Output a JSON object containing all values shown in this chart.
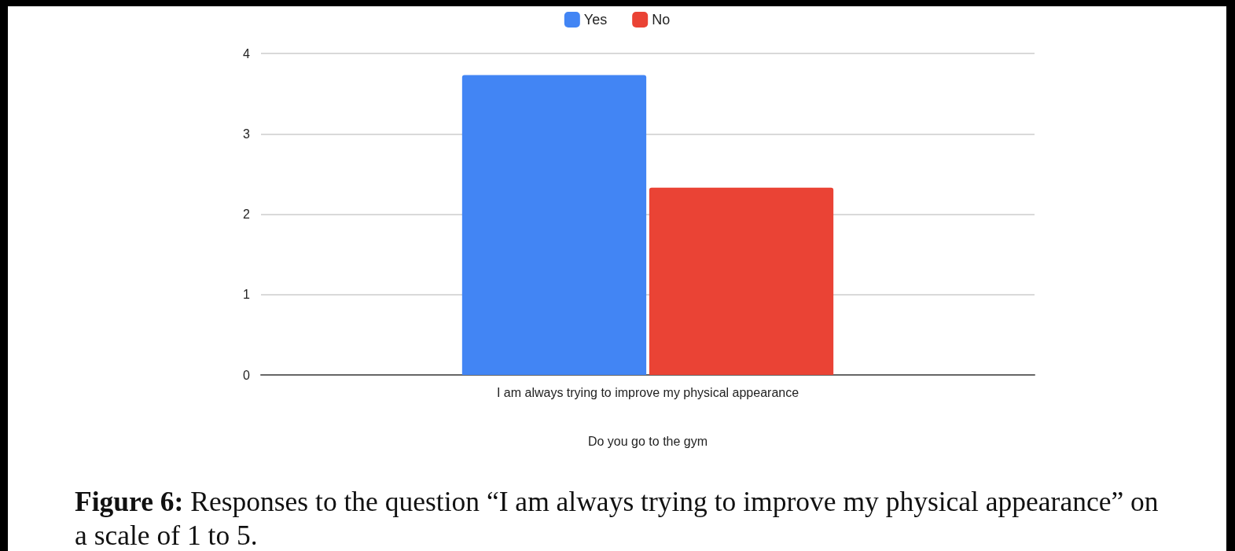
{
  "chart_data": {
    "type": "bar",
    "categories": [
      "I am always trying to improve my physical appearance"
    ],
    "series": [
      {
        "name": "Yes",
        "color": "#4285f4",
        "values": [
          3.73
        ]
      },
      {
        "name": "No",
        "color": "#ea4335",
        "values": [
          2.33
        ]
      }
    ],
    "xlabel": "Do you go to the gym",
    "ylim": [
      0,
      4
    ],
    "yticks": [
      0,
      1,
      2,
      3,
      4
    ],
    "grid": "y",
    "legend": "top",
    "annotations": [
      "Figure 6: Responses to the question “I am always trying to improve my physical appearance” on a scale of 1 to 5."
    ]
  }
}
